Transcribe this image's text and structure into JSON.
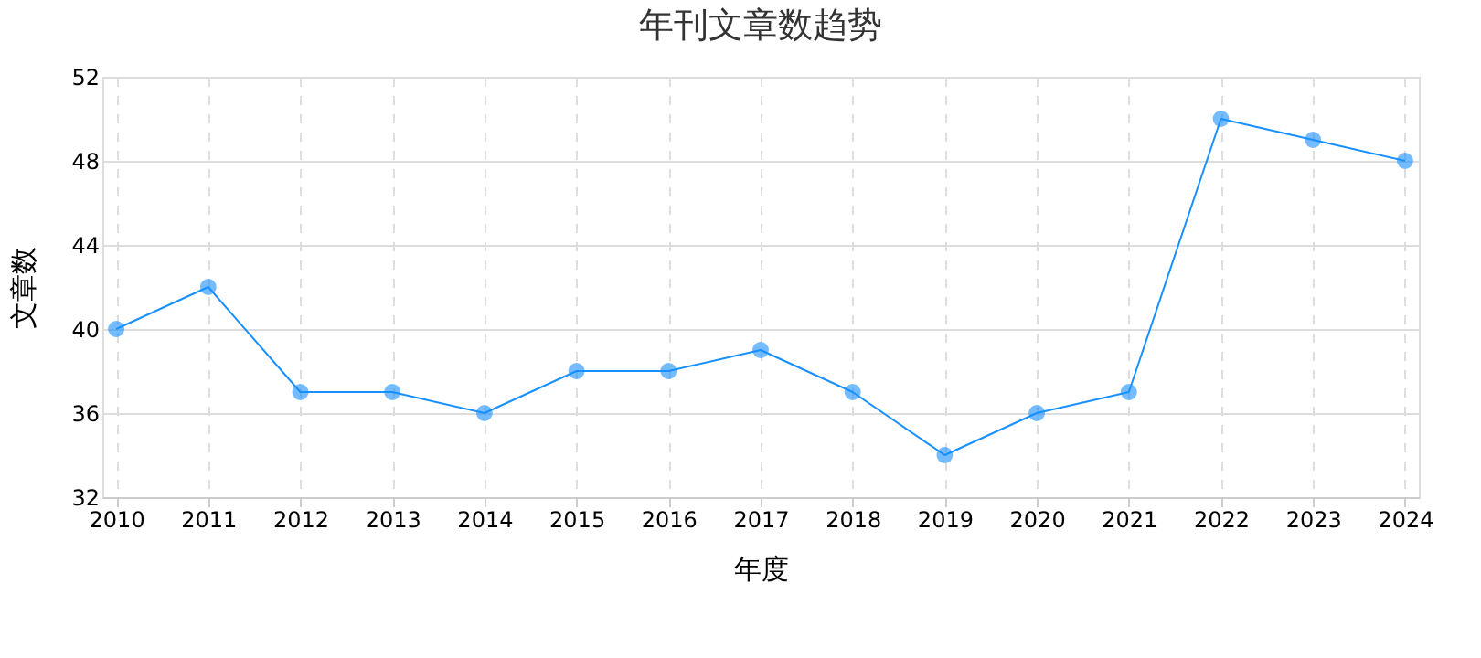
{
  "chart_data": {
    "type": "line",
    "title": "年刊文章数趋势",
    "xlabel": "年度",
    "ylabel": "文章数",
    "categories": [
      "2010",
      "2011",
      "2012",
      "2013",
      "2014",
      "2015",
      "2016",
      "2017",
      "2018",
      "2019",
      "2020",
      "2021",
      "2022",
      "2023",
      "2024"
    ],
    "series": [
      {
        "color": "#1890ff",
        "values": [
          40,
          42,
          37,
          37,
          36,
          38,
          38,
          39,
          37,
          34,
          36,
          37,
          50,
          49,
          48
        ]
      }
    ],
    "ylim": [
      32,
      52
    ],
    "yticks": [
      32,
      36,
      40,
      44,
      48,
      52
    ],
    "grid": true,
    "marker": "circle",
    "line_style": "solid"
  }
}
